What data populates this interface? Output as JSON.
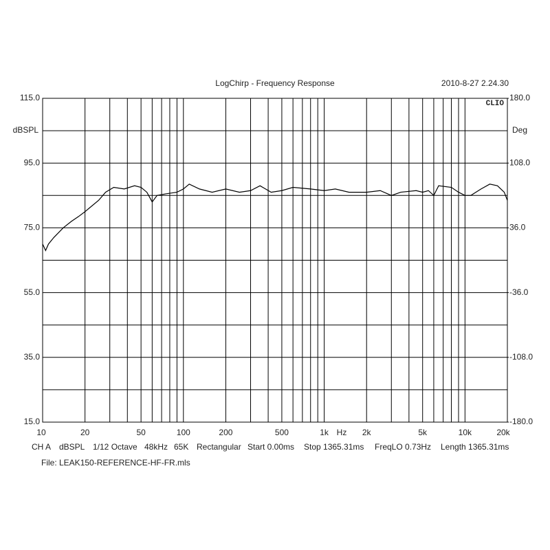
{
  "chart_data": {
    "type": "line",
    "title": "LogChirp - Frequency Response",
    "timestamp": "2010-8-27 2.24.30",
    "badge": "CLIO",
    "ylabel": "dBSPL",
    "y2label": "Deg",
    "xlabel": "Hz",
    "log_x": true,
    "grid": true,
    "color": "#000000",
    "xlim": [
      10,
      20000
    ],
    "xticks": [
      10,
      20,
      50,
      100,
      200,
      500,
      {
        "value": 1000,
        "label": "1k"
      },
      {
        "value": 2000,
        "label": "2k"
      },
      {
        "value": 5000,
        "label": "5k"
      },
      {
        "value": 10000,
        "label": "10k"
      },
      {
        "value": 20000,
        "label": "20k"
      }
    ],
    "xminor": [
      30,
      40,
      60,
      70,
      80,
      90,
      300,
      400,
      600,
      700,
      800,
      900,
      3000,
      4000,
      6000,
      7000,
      8000,
      9000
    ],
    "ylim": [
      15,
      115
    ],
    "yticks": [
      {
        "value": 115,
        "label": "115.0"
      },
      {
        "value": 95,
        "label": "95.0"
      },
      {
        "value": 75,
        "label": "75.0"
      },
      {
        "value": 55,
        "label": "55.0"
      },
      {
        "value": 35,
        "label": "35.0"
      },
      {
        "value": 15,
        "label": "15.0"
      }
    ],
    "yminor": [
      105,
      85,
      65,
      45,
      25
    ],
    "y2lim": [
      -180,
      180
    ],
    "y2ticks": [
      {
        "value": 180,
        "label": "180.0"
      },
      {
        "value": 108,
        "label": "108.0"
      },
      {
        "value": 36,
        "label": "36.0"
      },
      {
        "value": -36,
        "label": "-36.0"
      },
      {
        "value": -108,
        "label": "-108.0"
      },
      {
        "value": -180,
        "label": "-180.0"
      }
    ],
    "x": [
      10,
      10.5,
      11,
      12,
      14,
      16,
      18,
      20,
      25,
      28,
      32,
      38,
      45,
      50,
      55,
      60,
      65,
      75,
      90,
      100,
      110,
      130,
      160,
      200,
      250,
      300,
      350,
      420,
      500,
      600,
      800,
      1000,
      1200,
      1500,
      2000,
      2500,
      3000,
      3500,
      4500,
      5000,
      5500,
      6000,
      6500,
      8000,
      9000,
      10000,
      11000,
      13000,
      15000,
      17000,
      19000,
      20000
    ],
    "values": [
      70,
      68,
      70,
      72,
      75,
      77,
      78.5,
      80,
      83.5,
      86,
      87.5,
      87,
      88,
      87.5,
      86,
      83,
      85,
      85.5,
      86,
      87,
      88.5,
      87,
      86,
      87,
      86,
      86.5,
      88,
      86,
      86.5,
      87.5,
      87,
      86.5,
      87,
      86,
      86,
      86.5,
      85,
      86,
      86.5,
      86,
      86.5,
      85,
      88,
      87.5,
      86,
      85,
      85,
      87,
      88.5,
      88,
      86,
      83.5
    ],
    "footer": [
      "CH A",
      "dBSPL",
      "1/12 Octave",
      "48kHz",
      "65K",
      "Rectangular",
      "Start 0.00ms",
      "Stop 1365.31ms",
      "FreqLO 0.73Hz",
      "Length 1365.31ms"
    ],
    "file": "File: LEAK150-REFERENCE-HF-FR.mls"
  }
}
